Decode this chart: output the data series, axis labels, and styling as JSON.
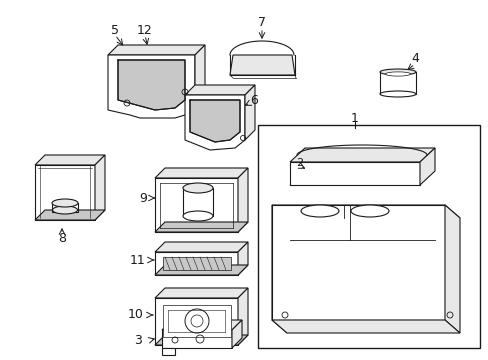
{
  "background_color": "#ffffff",
  "line_color": "#1a1a1a",
  "fig_width": 4.89,
  "fig_height": 3.6,
  "dpi": 100,
  "gray": "#c8c8c8",
  "light_gray": "#e8e8e8"
}
